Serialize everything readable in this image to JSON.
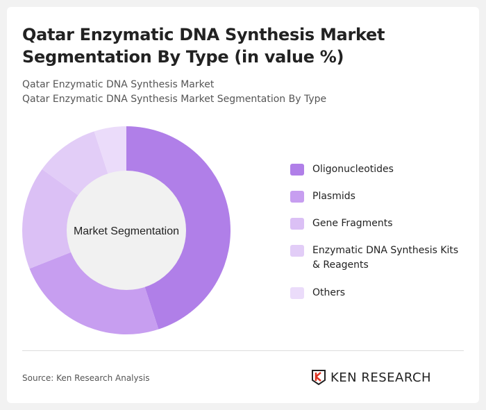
{
  "title": "Qatar Enzymatic DNA Synthesis Market Segmentation By Type (in value %)",
  "subtitle1": "Qatar Enzymatic DNA Synthesis Market",
  "subtitle2": "Qatar Enzymatic DNA Synthesis Market Segmentation By Type",
  "source": "Source: Ken Research Analysis",
  "logo_text": "KEN RESEARCH",
  "chart_data": {
    "type": "pie",
    "donut": true,
    "center_label": "Market Segmentation",
    "legend_position": "right",
    "categories": [
      "Oligonucleotides",
      "Plasmids",
      "Gene Fragments",
      "Enzymatic DNA Synthesis Kits & Reagents",
      "Others"
    ],
    "values": [
      45,
      24,
      16,
      10,
      5
    ],
    "colors": [
      "#b07fe8",
      "#c79ef0",
      "#dbc0f5",
      "#e2cdf7",
      "#ebdcfa"
    ]
  }
}
